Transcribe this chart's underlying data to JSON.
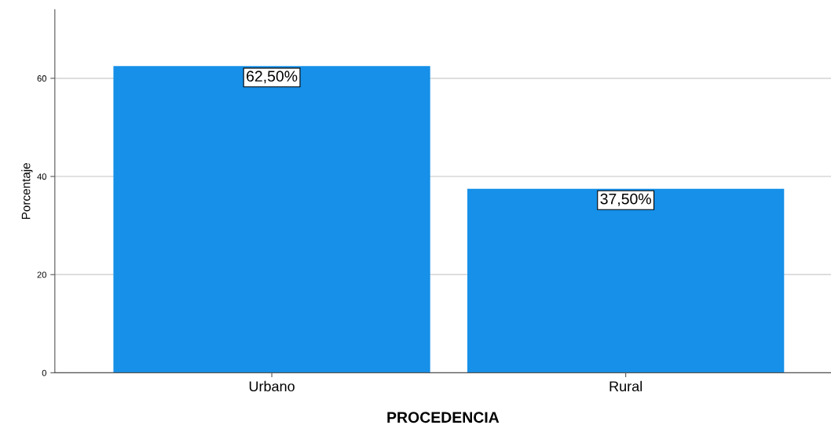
{
  "chart_data": {
    "type": "bar",
    "xlabel": "PROCEDENCIA",
    "ylabel": "Porcentaje",
    "categories": [
      "Urbano",
      "Rural"
    ],
    "values": [
      62.5,
      37.5
    ],
    "color": "#1690e8",
    "value_labels": [
      "62,50%",
      "37,50%"
    ],
    "ylim": [
      0,
      74
    ],
    "yticks": [
      0,
      20,
      40,
      60
    ],
    "grid": "y"
  }
}
